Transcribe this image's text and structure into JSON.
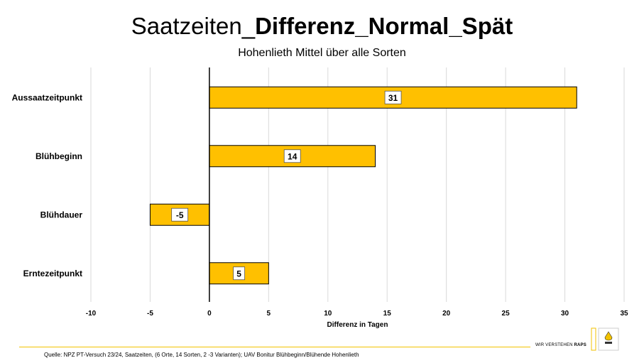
{
  "header": {
    "title_regular": "Saatzeiten_",
    "title_bold": "Differenz_Normal_Spät",
    "subtitle": "Hohenlieth  Mittel über alle Sorten"
  },
  "chart_data": {
    "type": "bar",
    "orientation": "horizontal",
    "categories": [
      "Aussaatzeitpunkt",
      "Blühbeginn",
      "Blühdauer",
      "Erntezeitpunkt"
    ],
    "values": [
      31,
      14,
      -5,
      5
    ],
    "data_labels": [
      "31",
      "14",
      "-5",
      "5"
    ],
    "xlabel": "Differenz in Tagen",
    "ylabel": "",
    "xlim": [
      -10,
      35
    ],
    "xticks": [
      -10,
      -5,
      0,
      5,
      10,
      15,
      20,
      25,
      30,
      35
    ],
    "grid": "vertical",
    "legend": "none",
    "bar_color": "#ffc000",
    "bar_edge_color": "#000000"
  },
  "footer": {
    "source": "Quelle: NPZ PT-Versuch 23/24, Saatzeiten, (6 Orte, 14 Sorten, 2 -3 Varianten); UAV Bonitur Blühbeginn/Blühende  Hohenlieth",
    "brand_prefix": "WIR VERSTEHEN ",
    "brand_bold": "RAPS",
    "accent_color": "#f2c200"
  }
}
